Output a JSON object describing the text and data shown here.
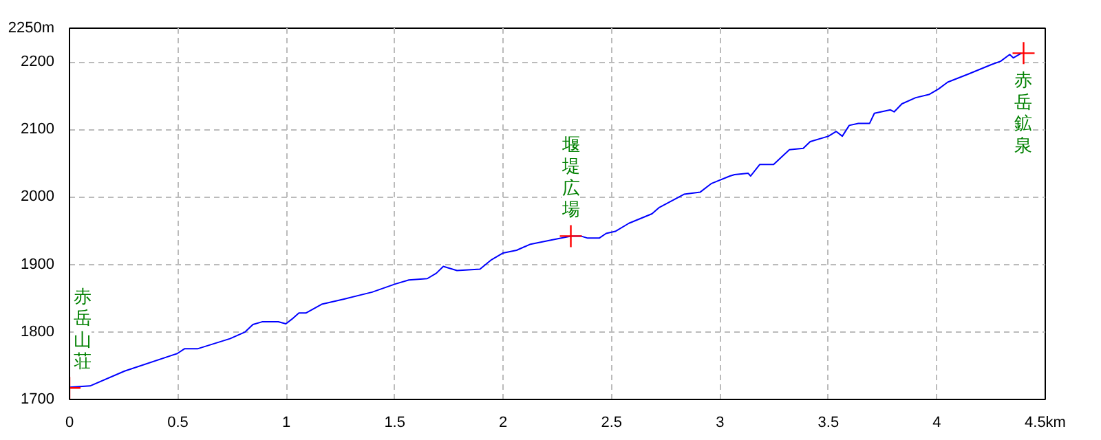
{
  "chart_data": {
    "type": "line",
    "xlim": [
      0,
      4.5
    ],
    "ylim": [
      1700,
      2250
    ],
    "xticks": [
      0,
      0.5,
      1,
      1.5,
      2,
      2.5,
      3,
      3.5,
      4,
      {
        "value": 4.5,
        "label": "4.5km"
      }
    ],
    "yticks": [
      1700,
      1800,
      1900,
      2000,
      2100,
      2200,
      {
        "value": 2250,
        "label": "2250m"
      }
    ],
    "grid": true,
    "series": [
      {
        "color": "#0000ff",
        "x": [
          0,
          0.095,
          0.254,
          0.497,
          0.53,
          0.59,
          0.74,
          0.81,
          0.846,
          0.888,
          0.963,
          0.998,
          1.026,
          1.058,
          1.09,
          1.163,
          1.27,
          1.396,
          1.502,
          1.565,
          1.65,
          1.692,
          1.724,
          1.787,
          1.893,
          1.946,
          2.0,
          2.062,
          2.126,
          2.22,
          2.312,
          2.358,
          2.39,
          2.443,
          2.475,
          2.517,
          2.58,
          2.686,
          2.718,
          2.834,
          2.908,
          2.961,
          3.046,
          3.067,
          3.13,
          3.141,
          3.183,
          3.247,
          3.32,
          3.384,
          3.416,
          3.5,
          3.536,
          3.564,
          3.596,
          3.638,
          3.69,
          3.712,
          3.786,
          3.803,
          3.839,
          3.902,
          3.966,
          4.008,
          4.05,
          4.145,
          4.251,
          4.294,
          4.336,
          4.353,
          4.39
        ],
        "values": [
          1718,
          1720,
          1742,
          1768,
          1775,
          1775,
          1790,
          1800,
          1811,
          1815,
          1815,
          1812,
          1819,
          1828,
          1828,
          1841,
          1849,
          1859,
          1871,
          1877,
          1879,
          1887,
          1897,
          1891,
          1893,
          1907,
          1917,
          1921,
          1930,
          1936,
          1942,
          1942,
          1939,
          1939,
          1946,
          1949,
          1961,
          1975,
          1984,
          2004,
          2007,
          2020,
          2031,
          2033,
          2035,
          2031,
          2048,
          2048,
          2070,
          2072,
          2082,
          2090,
          2097,
          2090,
          2106,
          2109,
          2109,
          2124,
          2129,
          2126,
          2138,
          2147,
          2152,
          2160,
          2170,
          2182,
          2196,
          2201,
          2211,
          2206,
          2213
        ]
      },
      {
        "type": "scatter",
        "color": "#ff0000",
        "marker": "cross",
        "x": [
          0,
          2.312,
          4.4
        ],
        "values": [
          1717,
          1942,
          2213
        ]
      }
    ],
    "annotations": [
      {
        "text": "赤岳山荘",
        "x": 0,
        "y": 1717
      },
      {
        "text": "堰堤広場",
        "x": 2.312,
        "y": 1942
      },
      {
        "text": "赤岳鉱泉",
        "x": 4.4,
        "y": 2213
      }
    ]
  }
}
